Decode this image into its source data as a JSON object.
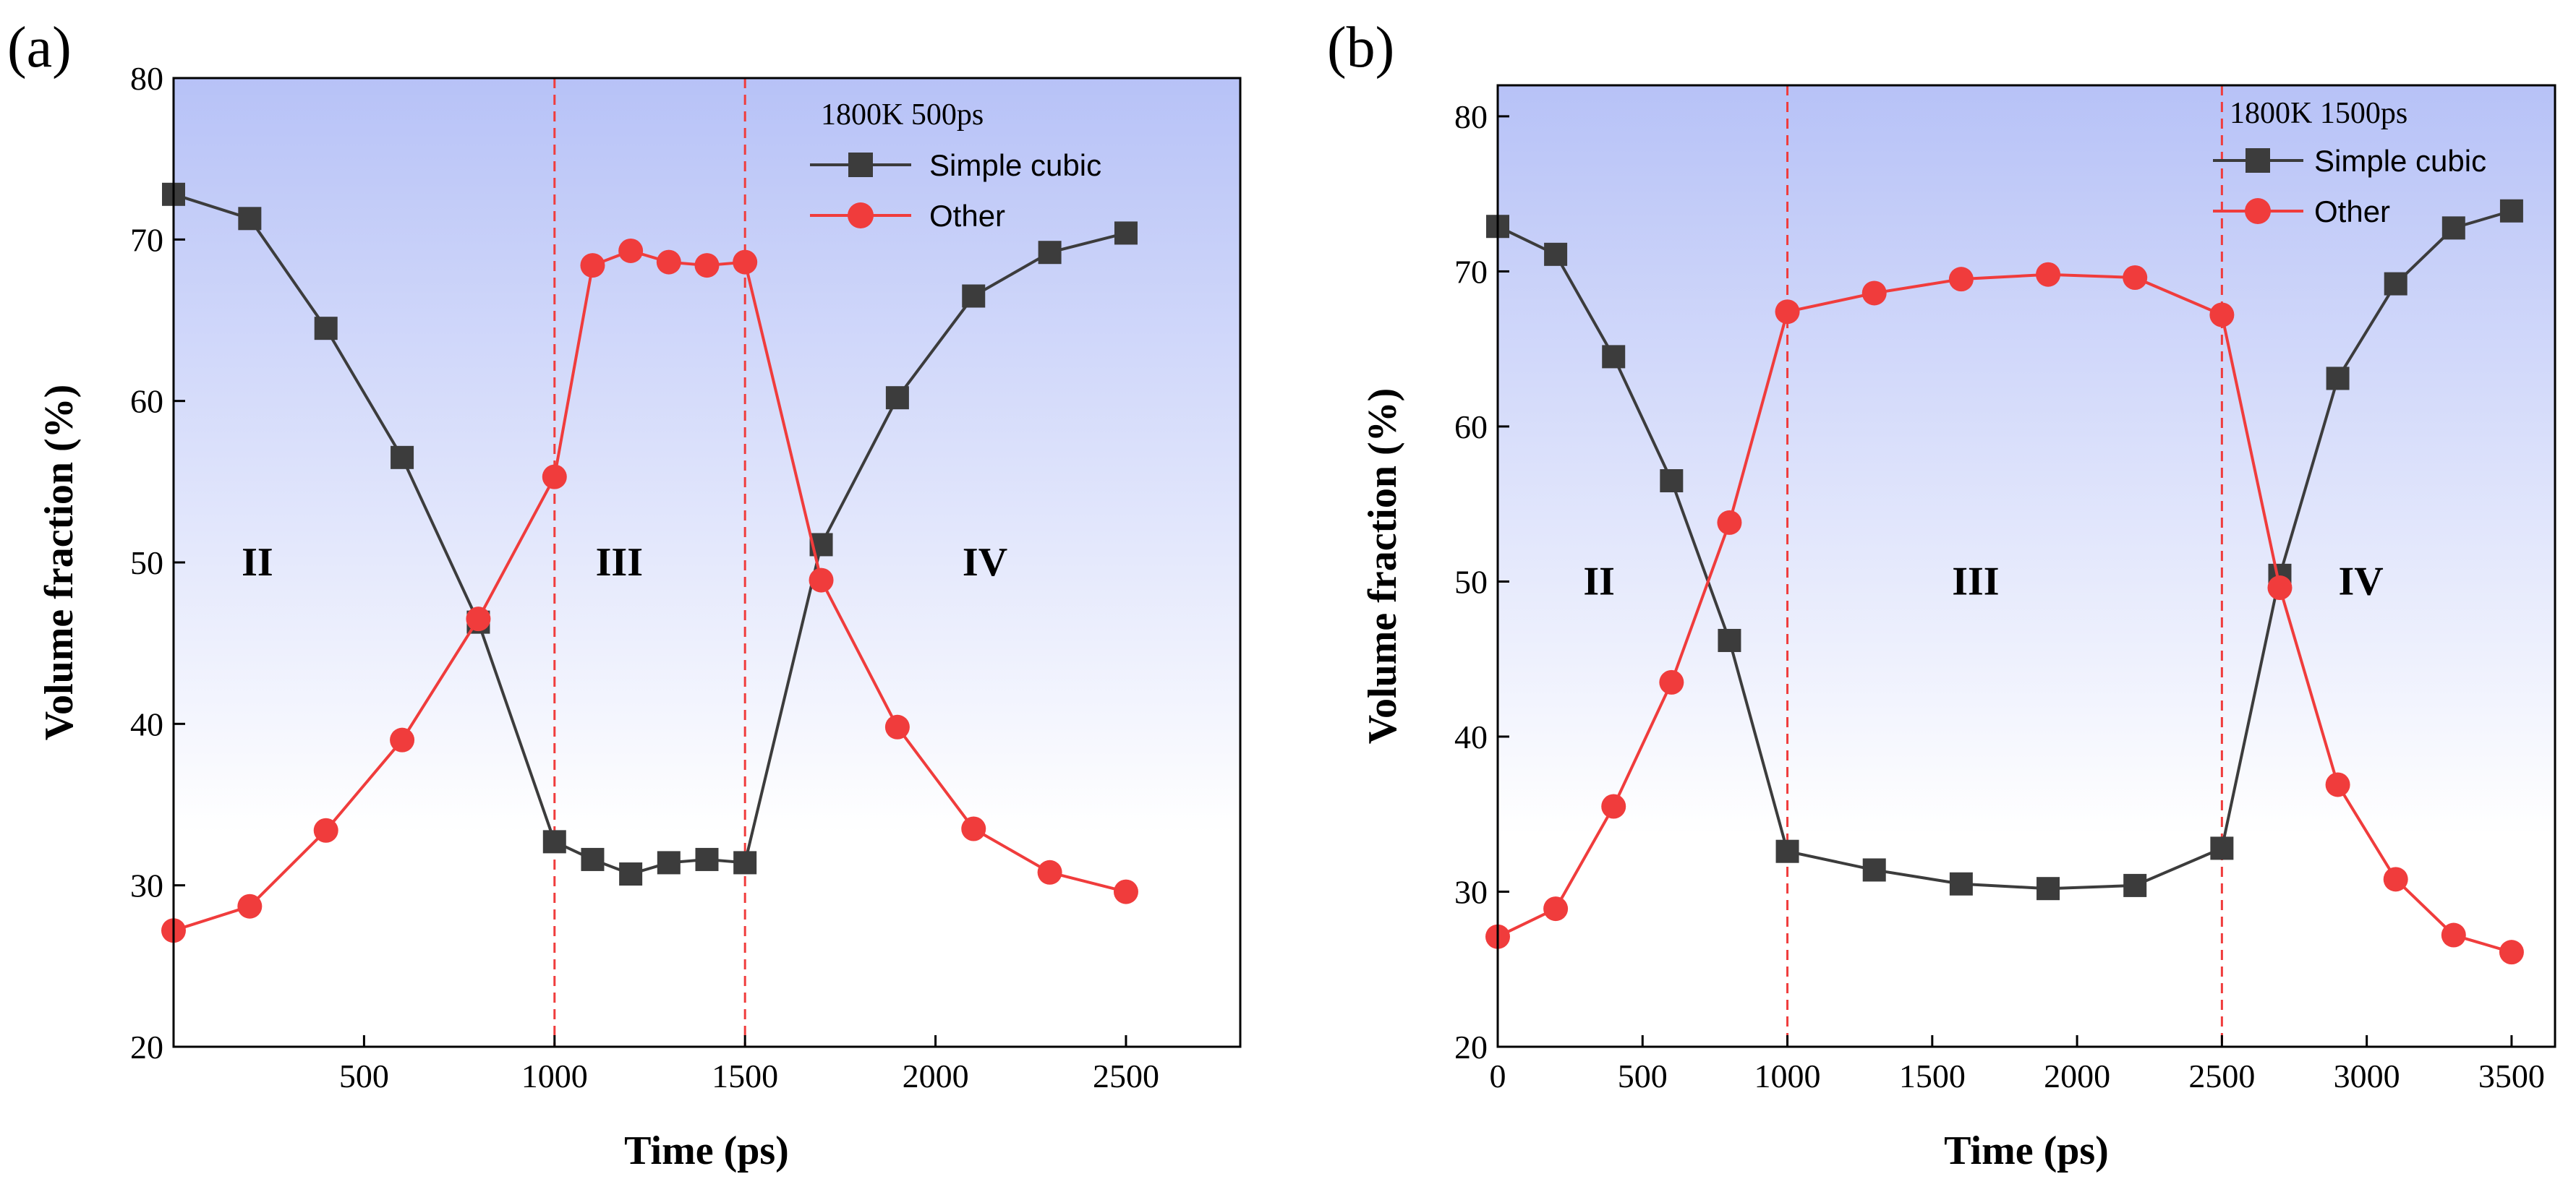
{
  "colors": {
    "simple_cubic": "#3c3c3c",
    "other": "#f03c3c",
    "divider": "#f03c3c",
    "bg_top": "#b7c2f7",
    "bg_bottom": "#ffffff"
  },
  "chart_data": [
    {
      "type": "line",
      "panel_label": "(a)",
      "xlabel": "Time (ps)",
      "ylabel": "Volume fraction (%)",
      "xlim": [
        0,
        2800
      ],
      "ylim": [
        20,
        80
      ],
      "xticks": [
        500,
        1000,
        1500,
        2000,
        2500
      ],
      "yticks": [
        20,
        30,
        40,
        50,
        60,
        70,
        80
      ],
      "dividers": [
        1000,
        1500
      ],
      "regions": [
        {
          "label": "II",
          "x": 220,
          "y": 50
        },
        {
          "label": "III",
          "x": 1170,
          "y": 50
        },
        {
          "label": "IV",
          "x": 2130,
          "y": 50
        }
      ],
      "legend_title": "1800K 500ps",
      "series": [
        {
          "name": "Simple cubic",
          "marker": "square",
          "points": [
            [
              0,
              72.8
            ],
            [
              200,
              71.3
            ],
            [
              400,
              64.5
            ],
            [
              600,
              56.5
            ],
            [
              800,
              46.3
            ],
            [
              1000,
              32.7
            ],
            [
              1100,
              31.6
            ],
            [
              1200,
              30.7
            ],
            [
              1300,
              31.4
            ],
            [
              1400,
              31.6
            ],
            [
              1500,
              31.4
            ],
            [
              1700,
              51.1
            ],
            [
              1900,
              60.2
            ],
            [
              2100,
              66.5
            ],
            [
              2300,
              69.2
            ],
            [
              2500,
              70.4
            ]
          ]
        },
        {
          "name": "Other",
          "marker": "circle",
          "points": [
            [
              0,
              27.2
            ],
            [
              200,
              28.7
            ],
            [
              400,
              33.4
            ],
            [
              600,
              39.0
            ],
            [
              800,
              46.5
            ],
            [
              1000,
              55.3
            ],
            [
              1100,
              68.4
            ],
            [
              1200,
              69.3
            ],
            [
              1300,
              68.6
            ],
            [
              1400,
              68.4
            ],
            [
              1500,
              68.6
            ],
            [
              1700,
              48.9
            ],
            [
              1900,
              39.8
            ],
            [
              2100,
              33.5
            ],
            [
              2300,
              30.8
            ],
            [
              2500,
              29.6
            ]
          ]
        }
      ]
    },
    {
      "type": "line",
      "panel_label": "(b)",
      "xlabel": "Time (ps)",
      "ylabel": "Volume fraction (%)",
      "xlim": [
        0,
        3650
      ],
      "ylim": [
        20,
        82
      ],
      "xticks": [
        0,
        500,
        1000,
        1500,
        2000,
        2500,
        3000,
        3500
      ],
      "yticks": [
        20,
        30,
        40,
        50,
        60,
        70,
        80
      ],
      "dividers": [
        1000,
        2500
      ],
      "regions": [
        {
          "label": "II",
          "x": 350,
          "y": 50
        },
        {
          "label": "III",
          "x": 1650,
          "y": 50
        },
        {
          "label": "IV",
          "x": 2980,
          "y": 50
        }
      ],
      "legend_title": "1800K 1500ps",
      "series": [
        {
          "name": "Simple cubic",
          "marker": "square",
          "points": [
            [
              0,
              72.9
            ],
            [
              200,
              71.1
            ],
            [
              400,
              64.5
            ],
            [
              600,
              56.5
            ],
            [
              800,
              46.2
            ],
            [
              1000,
              32.6
            ],
            [
              1300,
              31.4
            ],
            [
              1600,
              30.5
            ],
            [
              1900,
              30.2
            ],
            [
              2200,
              30.4
            ],
            [
              2500,
              32.8
            ],
            [
              2700,
              50.4
            ],
            [
              2900,
              63.1
            ],
            [
              3100,
              69.2
            ],
            [
              3300,
              72.8
            ],
            [
              3500,
              73.9
            ]
          ]
        },
        {
          "name": "Other",
          "marker": "circle",
          "points": [
            [
              0,
              27.1
            ],
            [
              200,
              28.9
            ],
            [
              400,
              35.5
            ],
            [
              600,
              43.5
            ],
            [
              800,
              53.8
            ],
            [
              1000,
              67.4
            ],
            [
              1300,
              68.6
            ],
            [
              1600,
              69.5
            ],
            [
              1900,
              69.8
            ],
            [
              2200,
              69.6
            ],
            [
              2500,
              67.2
            ],
            [
              2700,
              49.6
            ],
            [
              2900,
              36.9
            ],
            [
              3100,
              30.8
            ],
            [
              3300,
              27.2
            ],
            [
              3500,
              26.1
            ]
          ]
        }
      ]
    }
  ]
}
